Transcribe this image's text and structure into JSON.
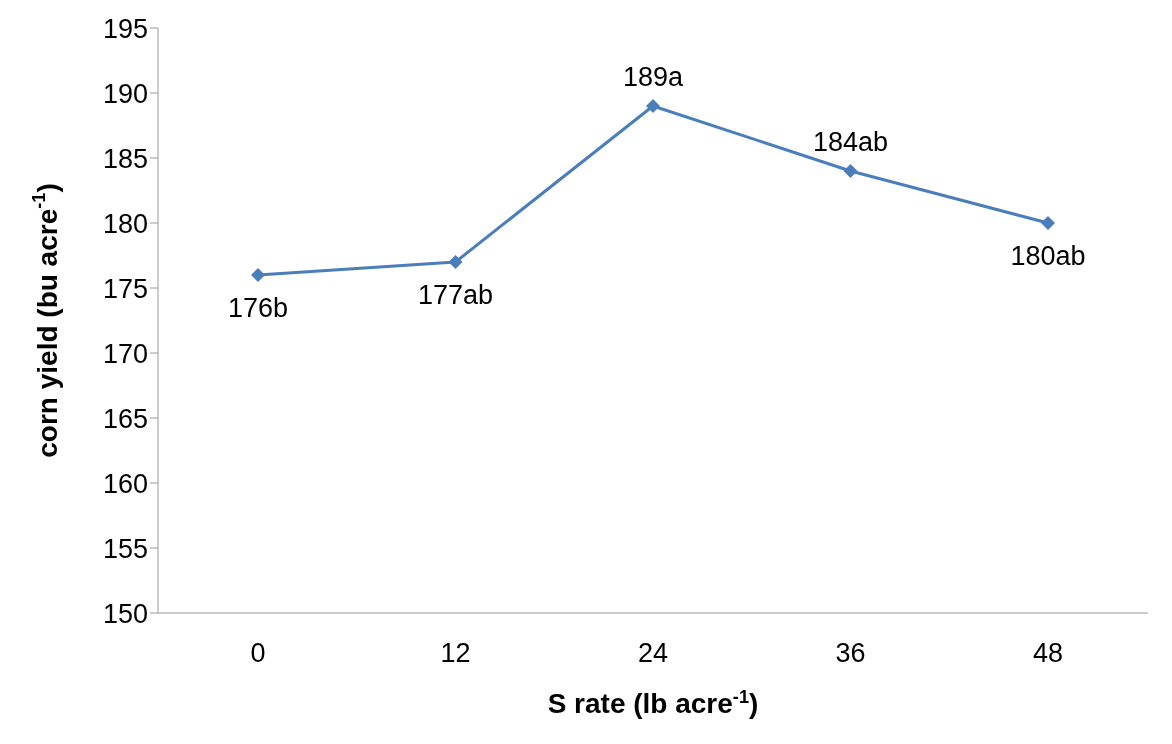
{
  "chart_data": {
    "type": "line",
    "xlabel": "S rate (lb acre$^{-1}$)",
    "ylabel": "corn yield (bu acre$^{-1}$)",
    "categories": [
      "0",
      "12",
      "24",
      "36",
      "48"
    ],
    "series": [
      {
        "color": "#4a7ebb",
        "values": [
          176,
          177,
          189,
          184,
          180
        ],
        "value_labels": [
          "176b",
          "177ab",
          "189a",
          "184ab",
          "180ab"
        ]
      }
    ],
    "ylim": [
      150,
      195
    ],
    "yticks": [
      150,
      155,
      160,
      165,
      170,
      175,
      180,
      185,
      190,
      195
    ],
    "marker": "diamond",
    "line_style": "solid"
  }
}
